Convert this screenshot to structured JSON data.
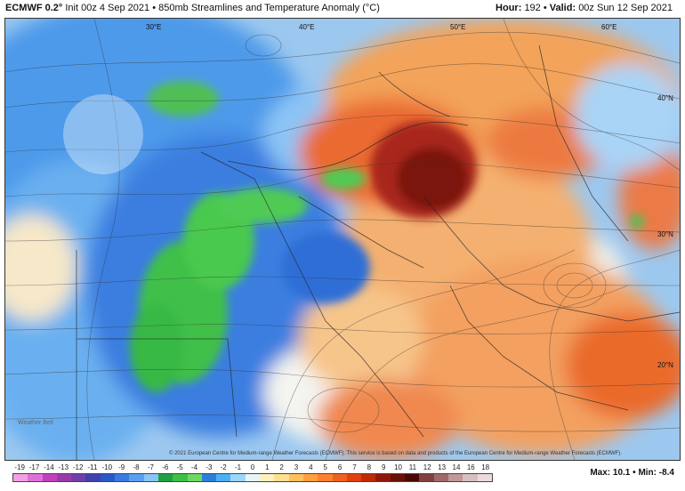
{
  "header": {
    "model": "ECMWF 0.2°",
    "init": "Init 00z 4 Sep 2021",
    "product": "850mb Streamlines and Temperature Anomaly (°C)",
    "hour_label": "Hour:",
    "hour_value": "192",
    "valid_label": "Valid:",
    "valid_value": "00z Sun 12 Sep 2021"
  },
  "map": {
    "longitude_labels": [
      "30°E",
      "40°E",
      "50°E",
      "60°E"
    ],
    "latitude_labels": [
      "40°N",
      "30°N",
      "20°N"
    ],
    "credit": "© 2021 European Centre for Medium-range Weather Forecasts (ECMWF). This service is based on data and products of the European Centre for Medium-range Weather Forecasts (ECMWF).",
    "watermark": "Weather Bell"
  },
  "legend": {
    "ticks": [
      "-19",
      "-17",
      "-14",
      "-13",
      "-12",
      "-11",
      "-10",
      "-9",
      "-8",
      "-7",
      "-6",
      "-5",
      "-4",
      "-3",
      "-2",
      "-1",
      "0",
      "1",
      "2",
      "3",
      "4",
      "5",
      "6",
      "7",
      "8",
      "9",
      "10",
      "11",
      "12",
      "13",
      "14",
      "16",
      "18"
    ],
    "colors": [
      "#f2a0e6",
      "#e070d8",
      "#c040c0",
      "#9a3aa8",
      "#7040a8",
      "#4040b0",
      "#2858c8",
      "#3a7ae0",
      "#5aa0f0",
      "#8ac4f8",
      "#20a040",
      "#3cc048",
      "#70d860",
      "#2a80d8",
      "#4ab0f0",
      "#9ad8fa",
      "#e8f4fa",
      "#fff0c0",
      "#ffe090",
      "#ffc060",
      "#ffa040",
      "#ff8030",
      "#f06020",
      "#e04010",
      "#c02808",
      "#901808",
      "#6a1008",
      "#4a0804",
      "#804040",
      "#a06868",
      "#c09898",
      "#d8c0c0",
      "#eadcdc"
    ]
  },
  "stats": {
    "max_label": "Max:",
    "max_value": "10.1",
    "min_label": "Min:",
    "min_value": "-8.4"
  }
}
